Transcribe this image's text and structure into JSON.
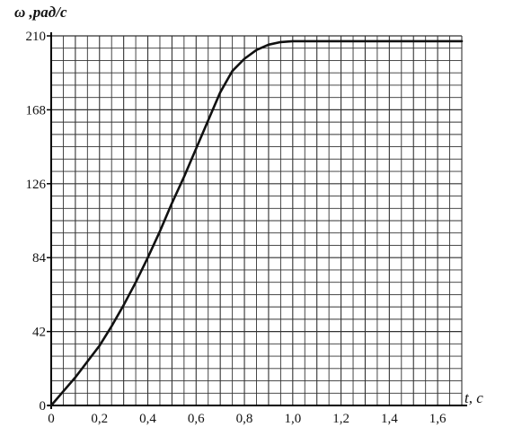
{
  "chart_data": {
    "type": "line",
    "title": "",
    "ylabel": "ω ,рад/с",
    "xlabel": "t, с",
    "xlim": [
      0,
      1.7
    ],
    "ylim": [
      0,
      210
    ],
    "grid": true,
    "legend": "none",
    "x_ticks": [
      "0",
      "0,2",
      "0,4",
      "0,6",
      "0,8",
      "1,0",
      "1,2",
      "1,4",
      "1,6"
    ],
    "x_tick_values": [
      0,
      0.2,
      0.4,
      0.6,
      0.8,
      1.0,
      1.2,
      1.4,
      1.6
    ],
    "y_ticks": [
      "0",
      "42",
      "84",
      "126",
      "168",
      "210"
    ],
    "y_tick_values": [
      0,
      42,
      84,
      126,
      168,
      210
    ],
    "series": [
      {
        "x": [
          0,
          0.05,
          0.1,
          0.15,
          0.2,
          0.25,
          0.3,
          0.35,
          0.4,
          0.45,
          0.5,
          0.55,
          0.6,
          0.65,
          0.7,
          0.75,
          0.8,
          0.85,
          0.9,
          0.95,
          1.0,
          1.1,
          1.2,
          1.4,
          1.6,
          1.7
        ],
        "y": [
          0,
          8,
          16,
          25,
          34,
          45,
          57,
          70,
          84,
          99,
          115,
          130,
          146,
          162,
          178,
          190,
          197,
          202,
          205,
          206.5,
          207,
          207,
          207,
          207,
          207,
          207
        ]
      }
    ],
    "colors": {
      "line": "#111111",
      "grid": "#333333",
      "axis": "#000000",
      "background": "#ffffff"
    }
  }
}
